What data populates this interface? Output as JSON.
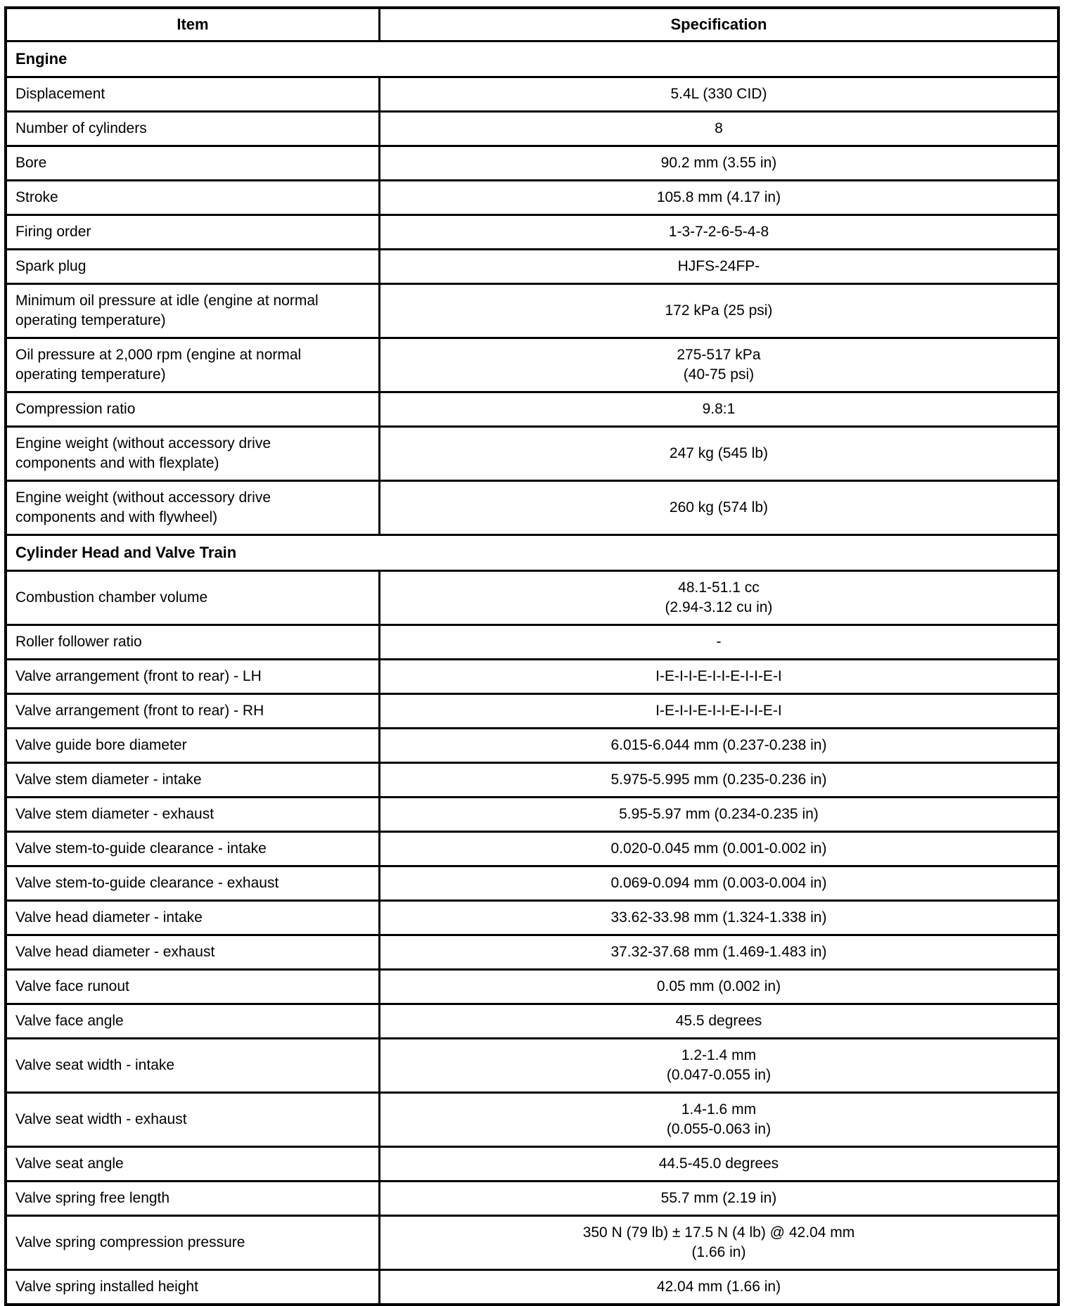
{
  "header": {
    "item": "Item",
    "spec": "Specification"
  },
  "sections": [
    {
      "title": "Engine",
      "rows": [
        {
          "item": "Displacement",
          "spec": "5.4L (330 CID)"
        },
        {
          "item": "Number of cylinders",
          "spec": "8"
        },
        {
          "item": "Bore",
          "spec": "90.2 mm (3.55 in)"
        },
        {
          "item": "Stroke",
          "spec": "105.8 mm (4.17 in)"
        },
        {
          "item": "Firing order",
          "spec": "1-3-7-2-6-5-4-8"
        },
        {
          "item": "Spark plug",
          "spec": "HJFS-24FP-"
        },
        {
          "item": "Minimum oil pressure at idle (engine at normal operating temperature)",
          "spec": "172 kPa (25 psi)"
        },
        {
          "item": "Oil pressure at 2,000 rpm (engine at normal operating temperature)",
          "spec": "275-517 kPa\n(40-75 psi)"
        },
        {
          "item": "Compression ratio",
          "spec": "9.8:1"
        },
        {
          "item": "Engine weight (without accessory drive components and with flexplate)",
          "spec": "247 kg (545 lb)"
        },
        {
          "item": "Engine weight (without accessory drive components and with flywheel)",
          "spec": "260 kg (574 lb)"
        }
      ]
    },
    {
      "title": "Cylinder Head and Valve Train",
      "rows": [
        {
          "item": "Combustion chamber volume",
          "spec": "48.1-51.1 cc\n(2.94-3.12 cu in)"
        },
        {
          "item": "Roller follower ratio",
          "spec": "-"
        },
        {
          "item": "Valve arrangement (front to rear) - LH",
          "spec": "I-E-I-I-E-I-I-E-I-I-E-I"
        },
        {
          "item": "Valve arrangement (front to rear) - RH",
          "spec": "I-E-I-I-E-I-I-E-I-I-E-I"
        },
        {
          "item": "Valve guide bore diameter",
          "spec": "6.015-6.044 mm (0.237-0.238 in)"
        },
        {
          "item": "Valve stem diameter - intake",
          "spec": "5.975-5.995 mm (0.235-0.236 in)"
        },
        {
          "item": "Valve stem diameter - exhaust",
          "spec": "5.95-5.97 mm (0.234-0.235 in)"
        },
        {
          "item": "Valve stem-to-guide clearance - intake",
          "spec": "0.020-0.045 mm (0.001-0.002 in)"
        },
        {
          "item": "Valve stem-to-guide clearance - exhaust",
          "spec": "0.069-0.094 mm (0.003-0.004 in)"
        },
        {
          "item": "Valve head diameter - intake",
          "spec": "33.62-33.98 mm (1.324-1.338 in)"
        },
        {
          "item": "Valve head diameter - exhaust",
          "spec": "37.32-37.68 mm (1.469-1.483 in)"
        },
        {
          "item": "Valve face runout",
          "spec": "0.05 mm (0.002 in)"
        },
        {
          "item": "Valve face angle",
          "spec": "45.5 degrees"
        },
        {
          "item": "Valve seat width - intake",
          "spec": "1.2-1.4 mm\n(0.047-0.055 in)"
        },
        {
          "item": "Valve seat width - exhaust",
          "spec": "1.4-1.6 mm\n(0.055-0.063 in)"
        },
        {
          "item": "Valve seat angle",
          "spec": "44.5-45.0 degrees"
        },
        {
          "item": "Valve spring free length",
          "spec": "55.7 mm (2.19 in)"
        },
        {
          "item": "Valve spring compression pressure",
          "spec": "350 N (79 lb) ± 17.5 N (4 lb) @ 42.04 mm\n(1.66 in)"
        },
        {
          "item": "Valve spring installed height",
          "spec": "42.04 mm (1.66 in)"
        }
      ]
    }
  ],
  "colors": {
    "border": "#000000",
    "text": "#000000",
    "background": "#ffffff"
  }
}
